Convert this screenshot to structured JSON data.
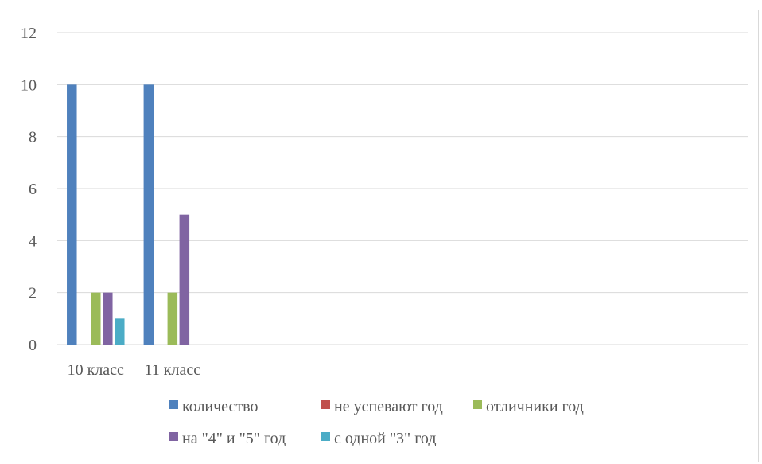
{
  "chart_data": {
    "type": "bar",
    "categories": [
      "10 класс",
      "11 класс",
      "",
      "",
      "",
      "",
      "",
      "",
      ""
    ],
    "series": [
      {
        "name": "количество",
        "color": "#4f81bd",
        "values": [
          10,
          10,
          0,
          0,
          0,
          0,
          0,
          0,
          0
        ]
      },
      {
        "name": "не успевают год",
        "color": "#c0504d",
        "values": [
          0,
          0,
          0,
          0,
          0,
          0,
          0,
          0,
          0
        ]
      },
      {
        "name": "отличники год",
        "color": "#9bbb59",
        "values": [
          2,
          2,
          0,
          0,
          0,
          0,
          0,
          0,
          0
        ]
      },
      {
        "name": "на \"4\" и \"5\" год",
        "color": "#8064a2",
        "values": [
          2,
          5,
          0,
          0,
          0,
          0,
          0,
          0,
          0
        ]
      },
      {
        "name": "с одной \"3\" год",
        "color": "#4bacc6",
        "values": [
          1,
          0,
          0,
          0,
          0,
          0,
          0,
          0,
          0
        ]
      }
    ],
    "yticks": [
      "0",
      "2",
      "4",
      "6",
      "8",
      "10",
      "12"
    ],
    "ylim": [
      0,
      12
    ],
    "grid": true,
    "legend_position": "bottom"
  }
}
